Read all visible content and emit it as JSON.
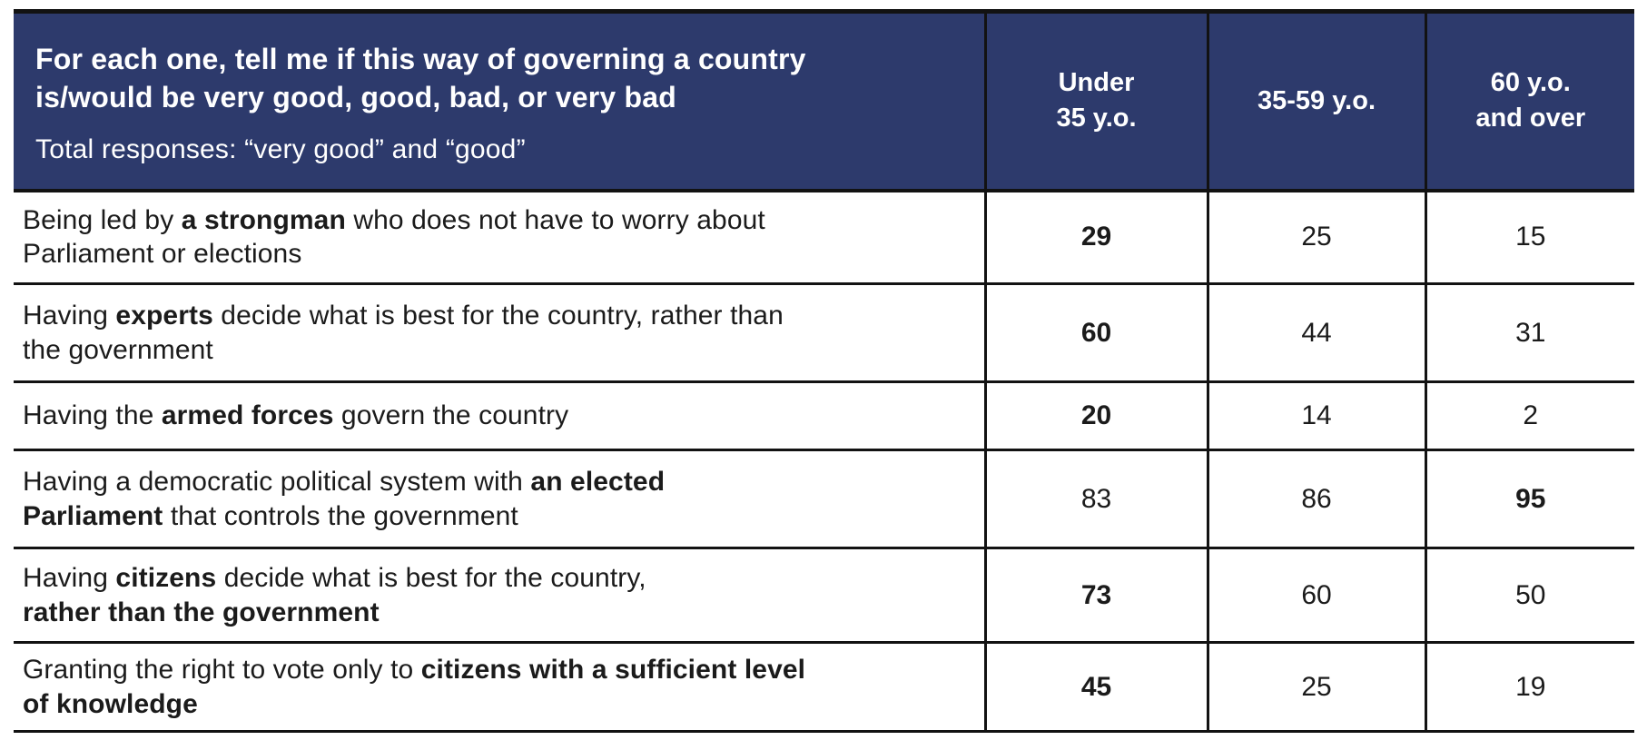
{
  "table": {
    "header": {
      "title": "For each one, tell me if this way of governing a country\nis/would be very good, good, bad, or very bad",
      "subtitle": "Total responses: “very good” and “good”",
      "columns": [
        "Under\n35 y.o.",
        "35-59 y.o.",
        "60 y.o.\nand over"
      ]
    },
    "rows": [
      {
        "question_parts": [
          {
            "text": "Being led by "
          },
          {
            "text": "a strongman",
            "bold": true
          },
          {
            "text": " who does not have to worry about"
          },
          {
            "break": true
          },
          {
            "text": "Parliament or elections"
          }
        ],
        "values": [
          {
            "text": "29",
            "bold": true
          },
          {
            "text": "25",
            "bold": false
          },
          {
            "text": "15",
            "bold": false
          }
        ]
      },
      {
        "question_parts": [
          {
            "text": "Having "
          },
          {
            "text": "experts",
            "bold": true
          },
          {
            "text": " decide what is best for the country, rather than"
          },
          {
            "break": true
          },
          {
            "text": "the government"
          }
        ],
        "values": [
          {
            "text": "60",
            "bold": true
          },
          {
            "text": "44",
            "bold": false
          },
          {
            "text": "31",
            "bold": false
          }
        ]
      },
      {
        "question_parts": [
          {
            "text": "Having the "
          },
          {
            "text": "armed forces",
            "bold": true
          },
          {
            "text": " govern the country"
          }
        ],
        "values": [
          {
            "text": "20",
            "bold": true
          },
          {
            "text": "14",
            "bold": false
          },
          {
            "text": "2",
            "bold": false
          }
        ]
      },
      {
        "question_parts": [
          {
            "text": "Having a democratic political system with "
          },
          {
            "text": "an elected",
            "bold": true
          },
          {
            "break": true
          },
          {
            "text": "Parliament",
            "bold": true
          },
          {
            "text": " that controls the government"
          }
        ],
        "values": [
          {
            "text": "83",
            "bold": false
          },
          {
            "text": "86",
            "bold": false
          },
          {
            "text": "95",
            "bold": true
          }
        ]
      },
      {
        "question_parts": [
          {
            "text": "Having "
          },
          {
            "text": "citizens",
            "bold": true
          },
          {
            "text": " decide what is best for the country,"
          },
          {
            "break": true
          },
          {
            "text": "rather than the government",
            "bold": true
          }
        ],
        "values": [
          {
            "text": "73",
            "bold": true
          },
          {
            "text": "60",
            "bold": false
          },
          {
            "text": "50",
            "bold": false
          }
        ]
      },
      {
        "question_parts": [
          {
            "text": "Granting the right to vote only to "
          },
          {
            "text": "citizens with a sufficient level",
            "bold": true
          },
          {
            "break": true
          },
          {
            "text": "of knowledge",
            "bold": true
          }
        ],
        "values": [
          {
            "text": "45",
            "bold": true
          },
          {
            "text": "25",
            "bold": false
          },
          {
            "text": "19",
            "bold": false
          }
        ]
      }
    ],
    "colors": {
      "header_bg": "#2d3a6c",
      "header_text": "#ffffff",
      "body_text": "#1b1b1b",
      "border": "#121212",
      "page_bg": "#ffffff"
    }
  },
  "chart_data": {
    "type": "table",
    "title": "For each one, tell me if this way of governing a country is/would be very good, good, bad, or very bad",
    "subtitle": "Total responses: “very good” and “good”",
    "categories": [
      "Under 35 y.o.",
      "35-59 y.o.",
      "60 y.o. and over"
    ],
    "rows": [
      {
        "label": "Being led by a strongman who does not have to worry about Parliament or elections",
        "values": [
          29,
          25,
          15
        ],
        "emphasized_value": 29
      },
      {
        "label": "Having experts decide what is best for the country, rather than the government",
        "values": [
          60,
          44,
          31
        ],
        "emphasized_value": 60
      },
      {
        "label": "Having the armed forces govern the country",
        "values": [
          20,
          14,
          2
        ],
        "emphasized_value": 20
      },
      {
        "label": "Having a democratic political system with an elected Parliament that controls the government",
        "values": [
          83,
          86,
          95
        ],
        "emphasized_value": 95
      },
      {
        "label": "Having citizens decide what is best for the country, rather than the government",
        "values": [
          73,
          60,
          50
        ],
        "emphasized_value": 73
      },
      {
        "label": "Granting the right to vote only to citizens with a sufficient level of knowledge",
        "values": [
          45,
          25,
          19
        ],
        "emphasized_value": 45
      }
    ]
  }
}
